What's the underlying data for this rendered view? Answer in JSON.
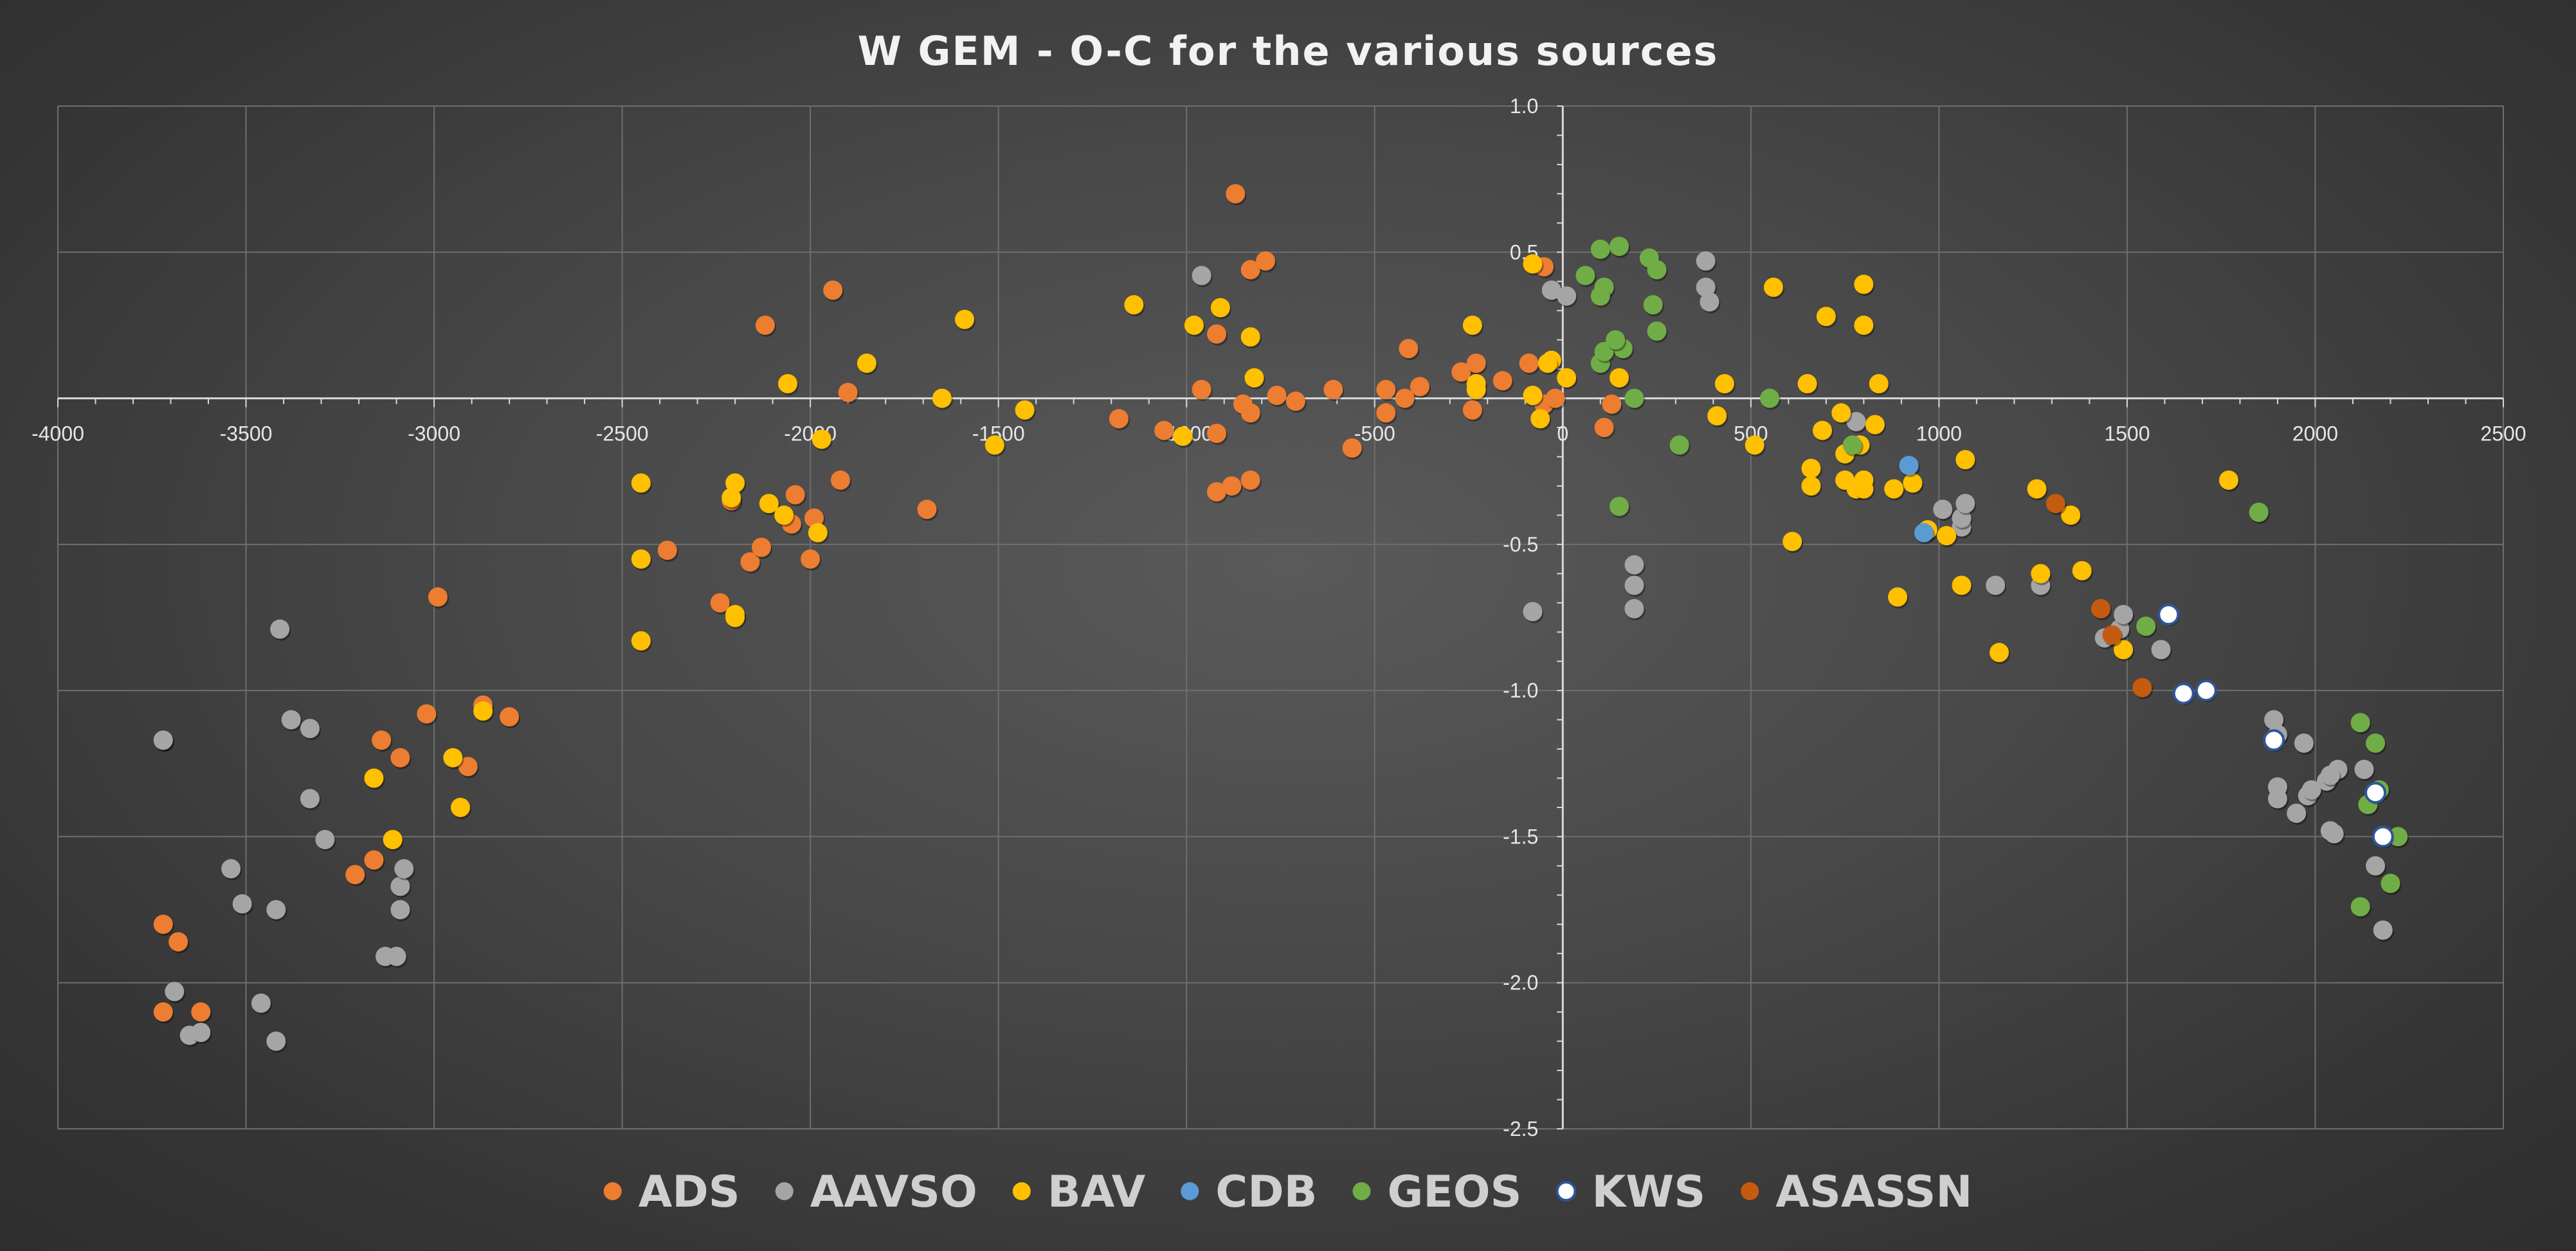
{
  "chart_data": {
    "type": "scatter",
    "title": "W GEM - O-C for the various sources",
    "xlabel": "",
    "ylabel": "",
    "xlim": [
      -4000,
      2500
    ],
    "ylim": [
      -2.5,
      1.0
    ],
    "x_ticks": [
      -4000,
      -3500,
      -3000,
      -2500,
      -2000,
      -1500,
      -1000,
      -500,
      0,
      500,
      1000,
      1500,
      2000,
      2500
    ],
    "x_tick_labels": [
      "-4000",
      "-3500",
      "-3000",
      "-2500",
      "-2000",
      "-1500",
      "-1000",
      "-500",
      "0",
      "500",
      "1000",
      "1500",
      "2000",
      "2500"
    ],
    "y_ticks": [
      1.0,
      0.5,
      0,
      -0.5,
      -1.0,
      -1.5,
      -2.0,
      -2.5
    ],
    "y_tick_labels": [
      "1.0",
      "0.5",
      "0",
      "-0.5",
      "-1.0",
      "-1.5",
      "-2.0",
      "-2.5"
    ],
    "grid": true,
    "legend_position": "bottom",
    "series": [
      {
        "name": "ADS",
        "color": "#ed7d31",
        "points": [
          [
            -3720,
            -1.8
          ],
          [
            -3680,
            -1.86
          ],
          [
            -3720,
            -2.1
          ],
          [
            -3620,
            -2.1
          ],
          [
            -3720,
            -1.17
          ],
          [
            -3140,
            -1.17
          ],
          [
            -3090,
            -1.23
          ],
          [
            -3020,
            -1.08
          ],
          [
            -2990,
            -0.68
          ],
          [
            -3160,
            -1.58
          ],
          [
            -3210,
            -1.63
          ],
          [
            -2870,
            -1.05
          ],
          [
            -2800,
            -1.09
          ],
          [
            -2910,
            -1.26
          ],
          [
            -2380,
            -0.52
          ],
          [
            -2240,
            -0.7
          ],
          [
            -2210,
            -0.35
          ],
          [
            -2160,
            -0.56
          ],
          [
            -2130,
            -0.51
          ],
          [
            -2040,
            -0.33
          ],
          [
            -2050,
            -0.43
          ],
          [
            -2000,
            -0.55
          ],
          [
            -1990,
            -0.41
          ],
          [
            -2120,
            0.25
          ],
          [
            -1940,
            0.37
          ],
          [
            -1900,
            0.02
          ],
          [
            -1920,
            -0.28
          ],
          [
            -1690,
            -0.38
          ],
          [
            -1180,
            -0.07
          ],
          [
            -1060,
            -0.11
          ],
          [
            -960,
            0.03
          ],
          [
            -920,
            -0.12
          ],
          [
            -920,
            -0.32
          ],
          [
            -880,
            -0.3
          ],
          [
            -870,
            0.7
          ],
          [
            -830,
            0.44
          ],
          [
            -790,
            0.47
          ],
          [
            -920,
            0.22
          ],
          [
            -850,
            -0.02
          ],
          [
            -830,
            -0.05
          ],
          [
            -830,
            -0.28
          ],
          [
            -760,
            0.01
          ],
          [
            -710,
            -0.01
          ],
          [
            -610,
            0.03
          ],
          [
            -560,
            -0.17
          ],
          [
            -470,
            -0.05
          ],
          [
            -470,
            0.03
          ],
          [
            -420,
            0.0
          ],
          [
            -410,
            0.17
          ],
          [
            -380,
            0.04
          ],
          [
            -270,
            0.09
          ],
          [
            -230,
            0.12
          ],
          [
            -240,
            -0.04
          ],
          [
            -160,
            0.06
          ],
          [
            -90,
            0.12
          ],
          [
            -50,
            -0.02
          ],
          [
            -20,
            0.0
          ],
          [
            -50,
            0.45
          ],
          [
            110,
            -0.1
          ],
          [
            130,
            -0.02
          ]
        ]
      },
      {
        "name": "AAVSO",
        "color": "#a5a5a5",
        "points": [
          [
            -3720,
            -1.17
          ],
          [
            -3690,
            -2.03
          ],
          [
            -3650,
            -2.18
          ],
          [
            -3620,
            -2.17
          ],
          [
            -3540,
            -1.61
          ],
          [
            -3510,
            -1.73
          ],
          [
            -3460,
            -2.07
          ],
          [
            -3420,
            -1.75
          ],
          [
            -3420,
            -2.2
          ],
          [
            -3410,
            -0.79
          ],
          [
            -3380,
            -1.1
          ],
          [
            -3330,
            -1.13
          ],
          [
            -3330,
            -1.37
          ],
          [
            -3290,
            -1.51
          ],
          [
            -3130,
            -1.91
          ],
          [
            -3100,
            -1.91
          ],
          [
            -3090,
            -1.67
          ],
          [
            -3090,
            -1.75
          ],
          [
            -3080,
            -1.61
          ],
          [
            -960,
            0.42
          ],
          [
            -30,
            0.37
          ],
          [
            10,
            0.35
          ],
          [
            -80,
            -0.73
          ],
          [
            190,
            -0.57
          ],
          [
            190,
            -0.64
          ],
          [
            190,
            -0.72
          ],
          [
            380,
            0.47
          ],
          [
            380,
            0.38
          ],
          [
            390,
            0.33
          ],
          [
            780,
            -0.08
          ],
          [
            1010,
            -0.38
          ],
          [
            1060,
            -0.44
          ],
          [
            1060,
            -0.41
          ],
          [
            1070,
            -0.36
          ],
          [
            1150,
            -0.64
          ],
          [
            1270,
            -0.64
          ],
          [
            1440,
            -0.82
          ],
          [
            1480,
            -0.79
          ],
          [
            1490,
            -0.74
          ],
          [
            1590,
            -0.86
          ],
          [
            1890,
            -1.1
          ],
          [
            1900,
            -1.15
          ],
          [
            1900,
            -1.33
          ],
          [
            1900,
            -1.37
          ],
          [
            1950,
            -1.42
          ],
          [
            1970,
            -1.18
          ],
          [
            1980,
            -1.36
          ],
          [
            1990,
            -1.34
          ],
          [
            2030,
            -1.31
          ],
          [
            2040,
            -1.48
          ],
          [
            2050,
            -1.49
          ],
          [
            2060,
            -1.27
          ],
          [
            2040,
            -1.29
          ],
          [
            2130,
            -1.27
          ],
          [
            2160,
            -1.6
          ],
          [
            2180,
            -1.82
          ]
        ]
      },
      {
        "name": "BAV",
        "color": "#ffc000",
        "points": [
          [
            -3160,
            -1.3
          ],
          [
            -3110,
            -1.51
          ],
          [
            -2930,
            -1.4
          ],
          [
            -2950,
            -1.23
          ],
          [
            -2870,
            -1.07
          ],
          [
            -2450,
            -0.29
          ],
          [
            -2450,
            -0.55
          ],
          [
            -2450,
            -0.83
          ],
          [
            -2200,
            -0.29
          ],
          [
            -2210,
            -0.34
          ],
          [
            -2200,
            -0.74
          ],
          [
            -2200,
            -0.75
          ],
          [
            -2110,
            -0.36
          ],
          [
            -2070,
            -0.4
          ],
          [
            -2060,
            0.05
          ],
          [
            -1980,
            -0.46
          ],
          [
            -1970,
            -0.14
          ],
          [
            -1850,
            0.12
          ],
          [
            -1650,
            0.0
          ],
          [
            -1590,
            0.27
          ],
          [
            -1510,
            -0.16
          ],
          [
            -1430,
            -0.04
          ],
          [
            -1140,
            0.32
          ],
          [
            -1010,
            -0.13
          ],
          [
            -980,
            0.25
          ],
          [
            -910,
            0.31
          ],
          [
            -830,
            0.21
          ],
          [
            -820,
            0.07
          ],
          [
            -240,
            0.25
          ],
          [
            -230,
            0.05
          ],
          [
            -230,
            0.03
          ],
          [
            -80,
            0.01
          ],
          [
            -60,
            -0.07
          ],
          [
            -30,
            0.13
          ],
          [
            -40,
            0.12
          ],
          [
            -80,
            0.46
          ],
          [
            10,
            0.07
          ],
          [
            150,
            0.07
          ],
          [
            410,
            -0.06
          ],
          [
            430,
            0.05
          ],
          [
            510,
            -0.16
          ],
          [
            560,
            0.38
          ],
          [
            610,
            -0.49
          ],
          [
            650,
            0.05
          ],
          [
            660,
            -0.24
          ],
          [
            660,
            -0.3
          ],
          [
            690,
            -0.11
          ],
          [
            700,
            0.28
          ],
          [
            740,
            -0.05
          ],
          [
            750,
            -0.19
          ],
          [
            750,
            -0.28
          ],
          [
            780,
            -0.31
          ],
          [
            790,
            -0.16
          ],
          [
            800,
            -0.28
          ],
          [
            800,
            0.25
          ],
          [
            800,
            0.39
          ],
          [
            800,
            -0.31
          ],
          [
            830,
            -0.09
          ],
          [
            840,
            0.05
          ],
          [
            880,
            -0.31
          ],
          [
            890,
            -0.68
          ],
          [
            930,
            -0.29
          ],
          [
            970,
            -0.45
          ],
          [
            1020,
            -0.47
          ],
          [
            1060,
            -0.64
          ],
          [
            1070,
            -0.21
          ],
          [
            1160,
            -0.87
          ],
          [
            1260,
            -0.31
          ],
          [
            1270,
            -0.6
          ],
          [
            1350,
            -0.4
          ],
          [
            1380,
            -0.59
          ],
          [
            1490,
            -0.86
          ],
          [
            1770,
            -0.28
          ]
        ]
      },
      {
        "name": "CDB",
        "color": "#5b9bd5",
        "points": [
          [
            920,
            -0.23
          ],
          [
            960,
            -0.46
          ]
        ]
      },
      {
        "name": "GEOS",
        "color": "#70ad47",
        "points": [
          [
            60,
            0.42
          ],
          [
            100,
            0.51
          ],
          [
            110,
            0.38
          ],
          [
            100,
            0.35
          ],
          [
            150,
            0.52
          ],
          [
            160,
            0.17
          ],
          [
            230,
            0.48
          ],
          [
            240,
            0.32
          ],
          [
            250,
            0.44
          ],
          [
            250,
            0.23
          ],
          [
            100,
            0.12
          ],
          [
            110,
            0.16
          ],
          [
            140,
            0.2
          ],
          [
            190,
            0.0
          ],
          [
            150,
            -0.37
          ],
          [
            310,
            -0.16
          ],
          [
            550,
            0.0
          ],
          [
            770,
            -0.16
          ],
          [
            1550,
            -0.78
          ],
          [
            1850,
            -0.39
          ],
          [
            2120,
            -1.11
          ],
          [
            2160,
            -1.18
          ],
          [
            2140,
            -1.39
          ],
          [
            2170,
            -1.34
          ],
          [
            2200,
            -1.66
          ],
          [
            2220,
            -1.5
          ],
          [
            2120,
            -1.74
          ]
        ]
      },
      {
        "name": "KWS",
        "color": "#ffffff",
        "points": [
          [
            1610,
            -0.74
          ],
          [
            1650,
            -1.01
          ],
          [
            1710,
            -1.0
          ],
          [
            1890,
            -1.17
          ],
          [
            2160,
            -1.35
          ],
          [
            2180,
            -1.5
          ]
        ]
      },
      {
        "name": "ASASSN",
        "color": "#c55a11",
        "points": [
          [
            1310,
            -0.36
          ],
          [
            1430,
            -0.72
          ],
          [
            1460,
            -0.81
          ],
          [
            1540,
            -0.99
          ]
        ]
      }
    ]
  }
}
